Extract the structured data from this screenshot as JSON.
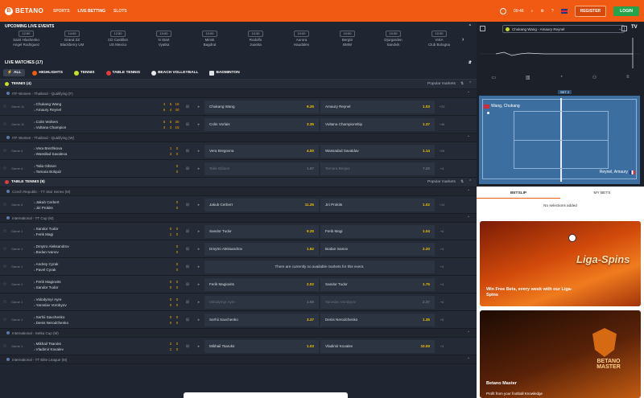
{
  "topbar": {
    "logo": "BETANO",
    "nav": [
      "SPORTS",
      "LIVE BETTING",
      "SLOTS"
    ],
    "time": "09:46",
    "register": "REGISTER",
    "login": "LOGIN"
  },
  "upcoming": {
    "title": "UPCOMING LIVE EVENTS",
    "events": [
      {
        "time": "12:50",
        "t1": "Saint Hlushenko",
        "t2": "Angel Rodriguez"
      },
      {
        "time": "14:00",
        "t1": "Grand ZZ",
        "t2": "Blackberry UM"
      },
      {
        "time": "12:50",
        "t1": "CD Castillon",
        "t2": "US Mexico"
      },
      {
        "time": "10:00",
        "t1": "N Start",
        "t2": "Vyatka"
      },
      {
        "time": "10:00",
        "t1": "Minsk",
        "t2": "Bagdrut"
      },
      {
        "time": "10:30",
        "t1": "Rodolfo",
        "t2": "Juanita"
      },
      {
        "time": "10:00",
        "t1": "Aurora",
        "t2": "Haudalen"
      },
      {
        "time": "10:00",
        "t1": "Bergtir",
        "t2": "BMW"
      },
      {
        "time": "10:30",
        "t1": "Djurgarden",
        "t2": "Sandvik"
      },
      {
        "time": "10:30",
        "t1": "VISA",
        "t2": "Club Bologna"
      }
    ]
  },
  "live": {
    "title": "LIVE MATCHES (17)",
    "sports": [
      "ALL",
      "HIGHLIGHTS",
      "TENNIS",
      "TABLE TENNIS",
      "BEACH VOLLEYBALL",
      "BADMINTON"
    ]
  },
  "groups": [
    {
      "name": "TENNIS (4)",
      "markets": "Popular markets",
      "comps": [
        {
          "name": "ITF Women - Thailand - Qualifying (F)",
          "rows": [
            {
              "time": "Game 11",
              "t1": "Chukang Wang",
              "t2": "Amaury Reynel",
              "s1": "4 5 15",
              "s2": "6 4 40",
              "o1": "Chukang Wang",
              "v1": "9.25",
              "o2": "Amaury Reynel",
              "v2": "1.03",
              "more": "+23"
            },
            {
              "time": "Game 11",
              "t1": "Colin Wolters",
              "t2": "Vultana Champion",
              "s1": "6 5 30",
              "s2": "4 3 15",
              "o1": "Colin Vorlais",
              "v1": "3.35",
              "o2": "Vultana Championship",
              "v2": "1.37",
              "more": "+46"
            }
          ]
        },
        {
          "name": "ITF Women - Thailand - Qualifying (W)",
          "rows": [
            {
              "time": "Game 4",
              "t1": "Vera Brezhkova",
              "t2": "Wassilad Savaleva",
              "s1": "1 0",
              "s2": "3 0",
              "o1": "Vera Bregovna",
              "v1": "4.00",
              "o2": "Wassadad Savaldav",
              "v2": "1.14",
              "more": "+26"
            },
            {
              "time": "Game 4",
              "t1": "Talia Gibson",
              "t2": "Tamara Bolquiz",
              "s1": "0",
              "s2": "0",
              "o1": "Talia Gibson",
              "v1": "1.97",
              "o2": "Tamara Beqaiz",
              "v2": "7.20",
              "more": "+4",
              "dim": true
            }
          ]
        }
      ]
    },
    {
      "name": "TABLE TENNIS (9)",
      "markets": "Popular markets",
      "comps": [
        {
          "name": "Czech Republic - TT Star Series (M)",
          "rows": [
            {
              "time": "Game 4",
              "t1": "Jakub Cerbert",
              "t2": "Jiri Prokits",
              "s1": "0",
              "s2": "0",
              "o1": "Jakub Cerbert",
              "v1": "11.25",
              "o2": "Jiri Prokits",
              "v2": "1.02",
              "more": "+14"
            }
          ]
        },
        {
          "name": "International - TT Cup (M)",
          "rows": [
            {
              "time": "Game 1",
              "t1": "Sandor Tudor",
              "t2": "Ferik Magi",
              "s1": "0 0",
              "s2": "1 0",
              "o1": "Sandor Tudor",
              "v1": "9.25",
              "o2": "Ferik Magi",
              "v2": "1.04",
              "more": "+6"
            },
            {
              "time": "Game 1",
              "t1": "Dmytro Aleksandrov",
              "t2": "Bodan Ivanov",
              "s1": "0",
              "s2": "0",
              "o1": "Dmytro Aleksandrov",
              "v1": "1.62",
              "o2": "Bodan Ivanov",
              "v2": "2.20",
              "more": "+4"
            },
            {
              "time": "Game 1",
              "t1": "Andrey Cyrak",
              "t2": "Pavel Cyrak",
              "s1": "0",
              "s2": "0",
              "unavailable": "There are currently no available markets for this event.",
              "more": "+4"
            },
            {
              "time": "Game 1",
              "t1": "Ferik Magiovits",
              "t2": "Sandor Tudor",
              "s1": "0 0",
              "s2": "0 0",
              "o1": "Ferik Magiovits",
              "v1": "2.02",
              "o2": "Sandor Tudor",
              "v2": "1.75",
              "more": "+4"
            },
            {
              "time": "Game 1",
              "t1": "Volodymyr Ayre",
              "t2": "Yaroslav Vorobyov",
              "s1": "0 0",
              "s2": "0 0",
              "o1": "Volodymyr Ayre",
              "v1": "1.55",
              "o2": "Yaroslav Vorobyov",
              "v2": "2.37",
              "more": "+6",
              "dim": true
            },
            {
              "time": "Game 1",
              "t1": "Serhii Savchenko",
              "t2": "Denis Nerodchenko",
              "s1": "0 0",
              "s2": "0 0",
              "o1": "Serhii Savchenko",
              "v1": "3.37",
              "o2": "Denis Nerodchenko",
              "v2": "1.35",
              "more": "+5"
            }
          ]
        },
        {
          "name": "International - Setka Cup (M)",
          "rows": [
            {
              "time": "Game 1",
              "t1": "Mikhail Tsaruks",
              "t2": "Vladimir Kovalev",
              "s1": "2 0",
              "s2": "1 0",
              "o1": "Mikhail Tsaruks",
              "v1": "1.03",
              "o2": "Vladimir Kovalev",
              "v2": "10.00",
              "more": "+3"
            }
          ]
        },
        {
          "name": "International - TT Elite League (M)",
          "rows": []
        }
      ]
    }
  ],
  "side": {
    "match_select": "Chukang Wang - Amaury Reynel",
    "set_tag": "SET 2",
    "player1": "Wang, Chukang",
    "player2": "Reynel, Amaury",
    "tab_betslip": "BETSLIP",
    "tab_mybets": "MY BETS",
    "no_selection": "No selections added",
    "promo1_title": "Liga-Spins",
    "promo1_text": "Win Free Bets, every week with our Liga-Spins",
    "promo2_title": "BETANO MASTER",
    "promo2_text": "Betano Master",
    "promo2_sub": "Profit from your football Knowledge"
  }
}
